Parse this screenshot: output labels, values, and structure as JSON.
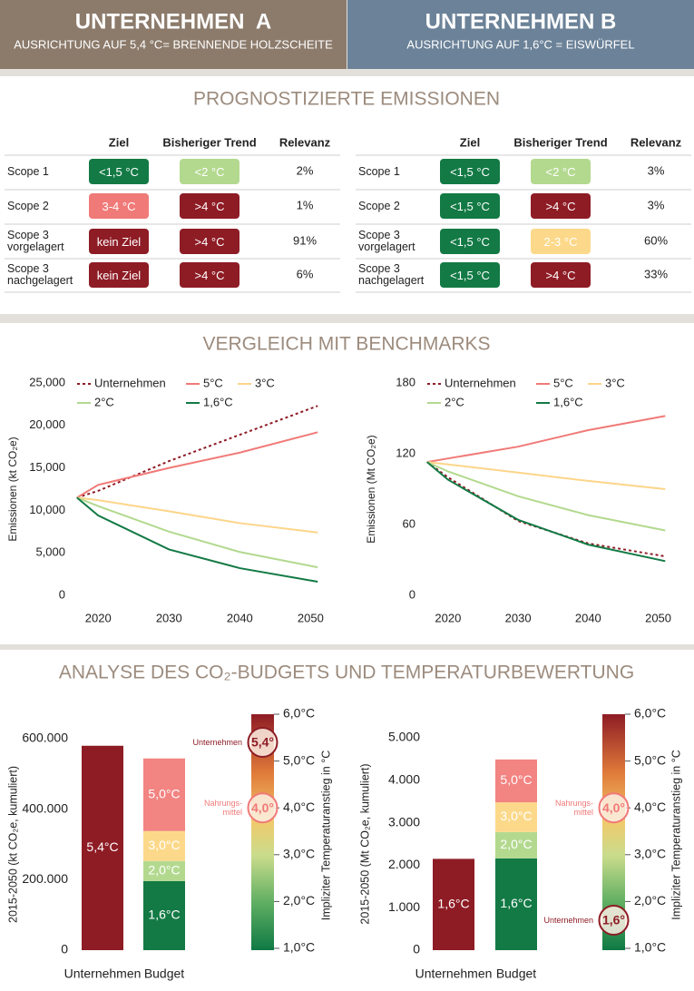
{
  "header": {
    "company_a": {
      "title": "UNTERNEHMEN  A",
      "subtitle": "AUSRICHTUNG AUF 5,4 °C= BRENNENDE HOLZSCHEITE"
    },
    "company_b": {
      "title": "UNTERNEHMEN B",
      "subtitle": "AUSRICHTUNG AUF 1,6°C = EISWÜRFEL"
    }
  },
  "sections": {
    "emissions": "PROGNOSTIZIERTE EMISSIONEN",
    "benchmarks": "VERGLEICH MIT BENCHMARKS",
    "budget": "ANALYSE DES CO₂-BUDGETS UND TEMPERATURBEWERTUNG"
  },
  "tables": [
    {
      "columns": [
        "Ziel",
        "Bisheriger Trend",
        "Relevanz"
      ],
      "rows": [
        {
          "scope": "Scope 1",
          "ziel": {
            "text": "<1,5 °C",
            "color": "#137a45"
          },
          "trend": {
            "text": "<2 °C",
            "color": "#b3d98f"
          },
          "relevanz": "2%"
        },
        {
          "scope": "Scope 2",
          "ziel": {
            "text": "3-4 °C",
            "color": "#f07a78"
          },
          "trend": {
            "text": ">4 °C",
            "color": "#8e1c25"
          },
          "relevanz": "1%"
        },
        {
          "scope": "Scope 3\nvorgelagert",
          "ziel": {
            "text": "kein Ziel",
            "color": "#8e1c25"
          },
          "trend": {
            "text": ">4 °C",
            "color": "#8e1c25"
          },
          "relevanz": "91%"
        },
        {
          "scope": "Scope 3\nnachgelagert",
          "ziel": {
            "text": "kein Ziel",
            "color": "#8e1c25"
          },
          "trend": {
            "text": ">4 °C",
            "color": "#8e1c25"
          },
          "relevanz": "6%"
        }
      ]
    },
    {
      "columns": [
        "Ziel",
        "Bisheriger Trend",
        "Relevanz"
      ],
      "rows": [
        {
          "scope": "Scope 1",
          "ziel": {
            "text": "<1,5 °C",
            "color": "#137a45"
          },
          "trend": {
            "text": "<2 °C",
            "color": "#b3d98f"
          },
          "relevanz": "3%"
        },
        {
          "scope": "Scope 2",
          "ziel": {
            "text": "<1,5 °C",
            "color": "#137a45"
          },
          "trend": {
            "text": ">4 °C",
            "color": "#8e1c25"
          },
          "relevanz": "3%"
        },
        {
          "scope": "Scope 3\nvorgelagert",
          "ziel": {
            "text": "<1,5 °C",
            "color": "#137a45"
          },
          "trend": {
            "text": "2-3 °C",
            "color": "#fcd98a"
          },
          "relevanz": "60%"
        },
        {
          "scope": "Scope 3\nnachgelagert",
          "ziel": {
            "text": "<1,5 °C",
            "color": "#137a45"
          },
          "trend": {
            "text": ">4 °C",
            "color": "#8e1c25"
          },
          "relevanz": "33%"
        }
      ]
    }
  ],
  "chart_data": [
    {
      "type": "line",
      "ylabel": "Emissionen (kt CO₂e)",
      "x": [
        2017,
        2020,
        2030,
        2040,
        2051
      ],
      "xlim": [
        2016,
        2052
      ],
      "xticks": [
        2020,
        2030,
        2040,
        2050
      ],
      "ylim": [
        0,
        25000
      ],
      "yticks": [
        0,
        {
          "value": 5000,
          "label": "5,000"
        },
        {
          "value": 10000,
          "label": "10,000"
        },
        {
          "value": 15000,
          "label": "15,000"
        },
        {
          "value": 20000,
          "label": "20,000"
        },
        {
          "value": 25000,
          "label": "25,000"
        }
      ],
      "series": [
        {
          "name": "Unternehmen",
          "color": "#8e1c25",
          "line_style": "dotted",
          "values": [
            11500,
            12300,
            15800,
            18900,
            22300
          ]
        },
        {
          "name": "5°C",
          "color": "#f07a78",
          "line_style": "solid",
          "values": [
            11500,
            13000,
            15000,
            16800,
            19200
          ]
        },
        {
          "name": "3°C",
          "color": "#fcd58a",
          "line_style": "solid",
          "values": [
            11500,
            11200,
            9900,
            8500,
            7400
          ]
        },
        {
          "name": "2°C",
          "color": "#b3d98f",
          "line_style": "solid",
          "values": [
            11500,
            10500,
            7500,
            5100,
            3300
          ]
        },
        {
          "name": "1,6°C",
          "color": "#137a45",
          "line_style": "solid",
          "values": [
            11500,
            9400,
            5400,
            3200,
            1600
          ]
        }
      ]
    },
    {
      "type": "line",
      "ylabel": "Emissionen (Mt CO₂e)",
      "x": [
        2017,
        2020,
        2030,
        2040,
        2051
      ],
      "xlim": [
        2016,
        2052
      ],
      "xticks": [
        2020,
        2030,
        2040,
        2050
      ],
      "ylim": [
        0,
        180
      ],
      "yticks": [
        0,
        60,
        120,
        180
      ],
      "series": [
        {
          "name": "Unternehmen",
          "color": "#8e1c25",
          "line_style": "dotted",
          "values": [
            113,
            100,
            63,
            44,
            33
          ]
        },
        {
          "name": "5°C",
          "color": "#f07a78",
          "line_style": "solid",
          "values": [
            113,
            116,
            126,
            140,
            152
          ]
        },
        {
          "name": "3°C",
          "color": "#fcd58a",
          "line_style": "solid",
          "values": [
            113,
            111,
            104,
            97,
            90
          ]
        },
        {
          "name": "2°C",
          "color": "#b3d98f",
          "line_style": "solid",
          "values": [
            113,
            105,
            84,
            68,
            55
          ]
        },
        {
          "name": "1,6°C",
          "color": "#137a45",
          "line_style": "solid",
          "values": [
            113,
            98,
            64,
            43,
            29
          ]
        }
      ]
    },
    {
      "type": "stacked_bar",
      "ylabel": "2015-2050 (kt CO₂e, kumuliert)",
      "categories": [
        "Unternehmen",
        "Budget"
      ],
      "ylim": [
        0,
        600000
      ],
      "yticks": [
        0,
        {
          "value": 200000,
          "label": "200.000"
        },
        {
          "value": 400000,
          "label": "400.000"
        },
        {
          "value": 600000,
          "label": "600.000"
        }
      ],
      "bars": [
        [
          {
            "value": 580000,
            "label": "5,4°C",
            "color": "#8e1c25"
          }
        ],
        [
          {
            "value": 196000,
            "label": "1,6°C",
            "color": "#137a45"
          },
          {
            "value": 57000,
            "label": "2,0°C",
            "color": "#b3d98f"
          },
          {
            "value": 85000,
            "label": "3,0°C",
            "color": "#fcd98a"
          },
          {
            "value": 206000,
            "label": "5,0°C",
            "color": "#f28482"
          }
        ]
      ],
      "temperature_scale": {
        "title": "Impliziter Temperaturanstieg in °C",
        "lim": [
          1,
          6
        ],
        "ticks": [
          {
            "value": 1,
            "label": "1,0°C"
          },
          {
            "value": 2,
            "label": "2,0°C"
          },
          {
            "value": 3,
            "label": "3,0°C"
          },
          {
            "value": 4,
            "label": "4,0°C"
          },
          {
            "value": 5,
            "label": "5,0°C"
          },
          {
            "value": 6,
            "label": "6,0°C"
          }
        ],
        "markers": [
          {
            "name": "Unternehmen",
            "value": 5.4,
            "label": "5,4°",
            "color": "#8e1c25"
          },
          {
            "name": "Nahrungs-\nmittel",
            "value": 4,
            "label": "4,0°",
            "color": "#f07a78"
          }
        ]
      }
    },
    {
      "type": "stacked_bar",
      "ylabel": "2015-2050 (Mt CO₂e, kumuliert)",
      "categories": [
        "Unternehmen",
        "Budget"
      ],
      "ylim": [
        0,
        5000
      ],
      "yticks": [
        0,
        {
          "value": 1000,
          "label": "1.000"
        },
        {
          "value": 2000,
          "label": "2.000"
        },
        {
          "value": 3000,
          "label": "3.000"
        },
        {
          "value": 4000,
          "label": "4.000"
        },
        {
          "value": 5000,
          "label": "5.000"
        }
      ],
      "bars": [
        [
          {
            "value": 2150,
            "label": "1,6°C",
            "color": "#8e1c25"
          }
        ],
        [
          {
            "value": 2160,
            "label": "1,6°C",
            "color": "#137a45"
          },
          {
            "value": 620,
            "label": "2,0°C",
            "color": "#b3d98f"
          },
          {
            "value": 700,
            "label": "3,0°C",
            "color": "#fcd98a"
          },
          {
            "value": 1010,
            "label": "5,0°C",
            "color": "#f28482"
          }
        ]
      ],
      "temperature_scale": {
        "title": "Impliziter Temperaturanstieg in °C",
        "lim": [
          1,
          6
        ],
        "ticks": [
          {
            "value": 1,
            "label": "1,0°C"
          },
          {
            "value": 2,
            "label": "2,0°C"
          },
          {
            "value": 3,
            "label": "3,0°C"
          },
          {
            "value": 4,
            "label": "4,0°C"
          },
          {
            "value": 5,
            "label": "5,0°C"
          },
          {
            "value": 6,
            "label": "6,0°C"
          }
        ],
        "markers": [
          {
            "name": "Nahrungs-\nmittel",
            "value": 4,
            "label": "4,0°",
            "color": "#f07a78"
          },
          {
            "name": "Unternehmen",
            "value": 1.6,
            "label": "1,6°",
            "color": "#8e1c25"
          }
        ]
      }
    }
  ]
}
